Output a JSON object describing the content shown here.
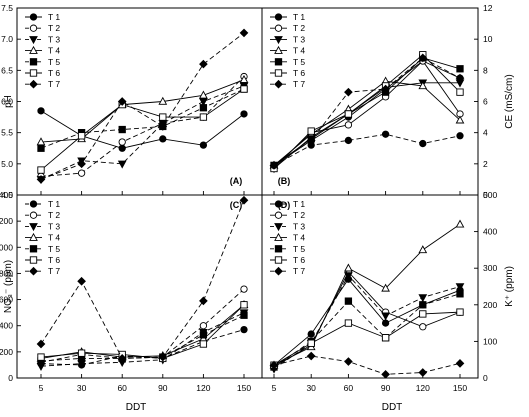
{
  "figure": {
    "xlabel_left": "DDT",
    "xlabel_right": "DDT"
  },
  "chart_data": [
    {
      "panel_label": "(A)",
      "type": "line",
      "ylabel": "pH",
      "y_axis_side": "left",
      "xlim": [
        5,
        150
      ],
      "ylim": [
        4.5,
        7.5
      ],
      "yticks": [
        "4.5",
        "5.0",
        "5.5",
        "6.0",
        "6.5",
        "7.0",
        "7.5"
      ],
      "x": [
        5,
        30,
        60,
        90,
        120,
        150
      ],
      "xticks": [],
      "legend_position": "top-left",
      "series": [
        {
          "name": "T 1",
          "marker": "circle-filled",
          "dash": "solid",
          "values": [
            5.85,
            5.45,
            5.25,
            5.4,
            5.3,
            5.8
          ]
        },
        {
          "name": "T 2",
          "marker": "circle-open",
          "dash": "dash",
          "values": [
            4.8,
            4.85,
            5.35,
            5.65,
            5.75,
            6.4
          ]
        },
        {
          "name": "T 3",
          "marker": "triangle-down-filled",
          "dash": "dash",
          "values": [
            4.75,
            5.05,
            5.0,
            5.65,
            6.0,
            6.25
          ]
        },
        {
          "name": "T 4",
          "marker": "triangle-up-open",
          "dash": "solid",
          "values": [
            5.35,
            5.4,
            5.95,
            6.0,
            6.1,
            6.35
          ]
        },
        {
          "name": "T 5",
          "marker": "square-filled",
          "dash": "dash",
          "values": [
            5.25,
            5.5,
            5.55,
            5.6,
            5.9,
            6.2
          ]
        },
        {
          "name": "T 6",
          "marker": "square-open",
          "dash": "solid",
          "values": [
            4.9,
            5.45,
            5.95,
            5.75,
            5.75,
            6.2
          ]
        },
        {
          "name": "T 7",
          "marker": "diamond-filled",
          "dash": "dash",
          "values": [
            4.75,
            5.0,
            6.0,
            5.6,
            6.6,
            7.1
          ]
        }
      ]
    },
    {
      "panel_label": "(B)",
      "type": "line",
      "ylabel": "CE (mS/cm)",
      "y_axis_side": "right",
      "xlim": [
        5,
        150
      ],
      "ylim": [
        0,
        12
      ],
      "yticks": [
        "0",
        "2",
        "4",
        "6",
        "8",
        "10",
        "12"
      ],
      "x": [
        5,
        30,
        60,
        90,
        120,
        150
      ],
      "xticks": [],
      "legend_position": "top-left",
      "series": [
        {
          "name": "T 1",
          "marker": "circle-filled",
          "dash": "solid",
          "values": [
            1.9,
            3.5,
            5.0,
            6.8,
            8.6,
            7.5
          ]
        },
        {
          "name": "T 2",
          "marker": "circle-open",
          "dash": "solid",
          "values": [
            1.8,
            4.0,
            4.5,
            6.3,
            8.6,
            5.2
          ]
        },
        {
          "name": "T 3",
          "marker": "triangle-down-filled",
          "dash": "solid",
          "values": [
            1.7,
            3.7,
            5.2,
            6.9,
            7.2,
            7.2
          ]
        },
        {
          "name": "T 4",
          "marker": "triangle-up-open",
          "dash": "solid",
          "values": [
            1.9,
            3.9,
            5.5,
            7.3,
            7.0,
            4.8
          ]
        },
        {
          "name": "T 5",
          "marker": "square-filled",
          "dash": "solid",
          "values": [
            1.9,
            3.6,
            5.2,
            6.6,
            8.8,
            8.1
          ]
        },
        {
          "name": "T 6",
          "marker": "square-open",
          "dash": "solid",
          "values": [
            1.7,
            4.1,
            5.2,
            7.0,
            9.0,
            6.6
          ]
        },
        {
          "name": "T 7",
          "marker": "diamond-filled",
          "dash": "dash",
          "values": [
            1.9,
            3.5,
            6.6,
            6.8,
            8.8,
            7.5
          ]
        },
        {
          "name": "",
          "marker": "circle-filled",
          "dash": "dash",
          "values": [
            1.9,
            3.2,
            3.5,
            3.9,
            3.3,
            3.8
          ]
        }
      ]
    },
    {
      "panel_label": "(C)",
      "type": "line",
      "ylabel": "NO₃⁻ (ppm)",
      "y_axis_side": "left",
      "xlim": [
        5,
        150
      ],
      "ylim": [
        0,
        1400
      ],
      "yticks": [
        "0",
        "200",
        "400",
        "600",
        "800",
        "1000",
        "1200",
        "1400"
      ],
      "x": [
        5,
        30,
        60,
        90,
        120,
        150
      ],
      "xticks": [
        "5",
        "30",
        "60",
        "90",
        "120",
        "150"
      ],
      "legend_position": "top-left",
      "series": [
        {
          "name": "T 1",
          "marker": "circle-filled",
          "dash": "dash",
          "values": [
            110,
            100,
            170,
            150,
            280,
            370
          ]
        },
        {
          "name": "T 2",
          "marker": "circle-open",
          "dash": "dash",
          "values": [
            120,
            180,
            150,
            160,
            400,
            680
          ]
        },
        {
          "name": "T 3",
          "marker": "triangle-down-filled",
          "dash": "dash",
          "values": [
            90,
            110,
            120,
            140,
            350,
            500
          ]
        },
        {
          "name": "T 4",
          "marker": "triangle-up-open",
          "dash": "solid",
          "values": [
            150,
            200,
            160,
            170,
            300,
            560
          ]
        },
        {
          "name": "T 5",
          "marker": "square-filled",
          "dash": "dash",
          "values": [
            130,
            150,
            150,
            160,
            330,
            480
          ]
        },
        {
          "name": "T 6",
          "marker": "square-open",
          "dash": "solid",
          "values": [
            160,
            190,
            180,
            150,
            260,
            560
          ]
        },
        {
          "name": "T 7",
          "marker": "diamond-filled",
          "dash": "dash",
          "values": [
            260,
            740,
            150,
            160,
            590,
            1360
          ]
        }
      ]
    },
    {
      "panel_label": "(D)",
      "type": "line",
      "ylabel": "K⁺ (ppm)",
      "y_axis_side": "right",
      "xlim": [
        5,
        150
      ],
      "ylim": [
        0,
        500
      ],
      "yticks": [
        "0",
        "100",
        "200",
        "300",
        "400",
        "500"
      ],
      "x": [
        5,
        30,
        60,
        90,
        120,
        150
      ],
      "xticks": [
        "5",
        "30",
        "60",
        "90",
        "120",
        "150"
      ],
      "legend_position": "top-left",
      "series": [
        {
          "name": "T 1",
          "marker": "circle-filled",
          "dash": "solid",
          "values": [
            35,
            120,
            270,
            150,
            200,
            240
          ]
        },
        {
          "name": "T 2",
          "marker": "circle-open",
          "dash": "solid",
          "values": [
            30,
            90,
            290,
            180,
            140,
            180
          ]
        },
        {
          "name": "T 3",
          "marker": "triangle-down-filled",
          "dash": "dash",
          "values": [
            25,
            95,
            280,
            170,
            220,
            250
          ]
        },
        {
          "name": "T 4",
          "marker": "triangle-up-open",
          "dash": "solid",
          "values": [
            35,
            85,
            300,
            245,
            350,
            420
          ]
        },
        {
          "name": "T 5",
          "marker": "square-filled",
          "dash": "dash",
          "values": [
            30,
            100,
            210,
            110,
            200,
            230
          ]
        },
        {
          "name": "T 6",
          "marker": "square-open",
          "dash": "solid",
          "values": [
            35,
            95,
            150,
            110,
            175,
            180
          ]
        },
        {
          "name": "T 7",
          "marker": "diamond-filled",
          "dash": "dash",
          "values": [
            35,
            60,
            45,
            10,
            15,
            40
          ]
        }
      ]
    }
  ]
}
